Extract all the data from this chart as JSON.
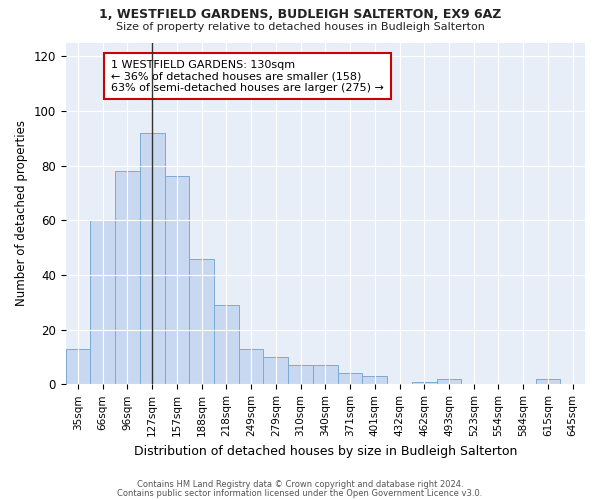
{
  "title1": "1, WESTFIELD GARDENS, BUDLEIGH SALTERTON, EX9 6AZ",
  "title2": "Size of property relative to detached houses in Budleigh Salterton",
  "xlabel": "Distribution of detached houses by size in Budleigh Salterton",
  "ylabel": "Number of detached properties",
  "categories": [
    "35sqm",
    "66sqm",
    "96sqm",
    "127sqm",
    "157sqm",
    "188sqm",
    "218sqm",
    "249sqm",
    "279sqm",
    "310sqm",
    "340sqm",
    "371sqm",
    "401sqm",
    "432sqm",
    "462sqm",
    "493sqm",
    "523sqm",
    "554sqm",
    "584sqm",
    "615sqm",
    "645sqm"
  ],
  "values": [
    13,
    60,
    78,
    92,
    76,
    46,
    29,
    13,
    10,
    7,
    7,
    4,
    3,
    0,
    1,
    2,
    0,
    0,
    0,
    2,
    0
  ],
  "bar_color": "#c8d8f0",
  "bar_edge_color": "#7aaad4",
  "vline_x": 3.0,
  "annotation_text": "1 WESTFIELD GARDENS: 130sqm\n← 36% of detached houses are smaller (158)\n63% of semi-detached houses are larger (275) →",
  "annotation_box_color": "#ffffff",
  "annotation_box_edge": "#cc0000",
  "ylim": [
    0,
    125
  ],
  "yticks": [
    0,
    20,
    40,
    60,
    80,
    100,
    120
  ],
  "footer1": "Contains HM Land Registry data © Crown copyright and database right 2024.",
  "footer2": "Contains public sector information licensed under the Open Government Licence v3.0.",
  "bg_color": "#ffffff",
  "plot_bg_color": "#e8eef8",
  "grid_color": "#ffffff"
}
